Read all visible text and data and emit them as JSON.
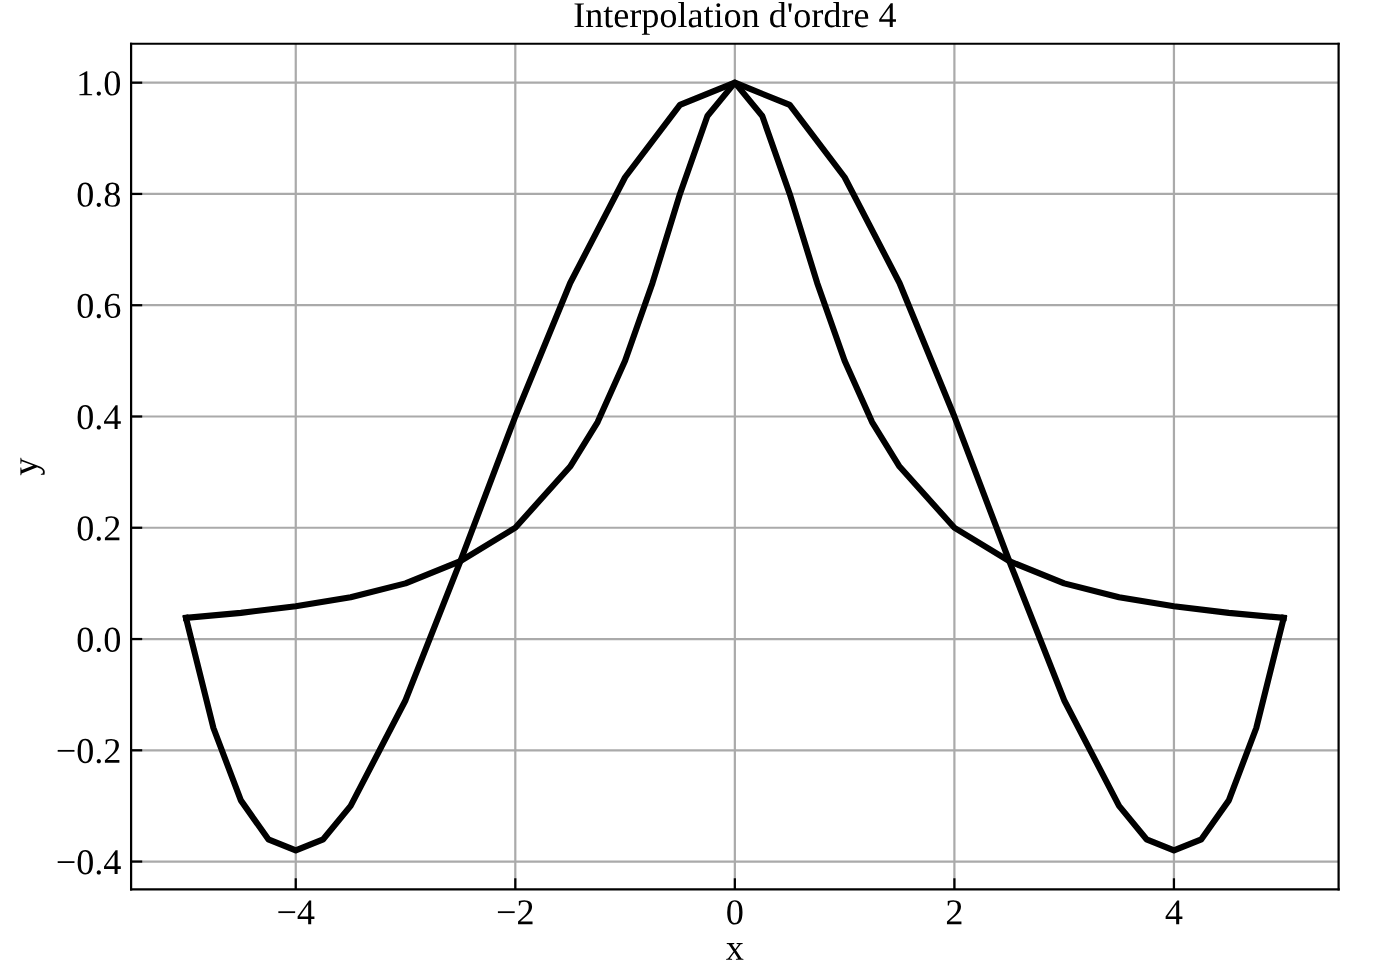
{
  "chart_data": {
    "type": "line",
    "title": "Interpolation d'ordre 4",
    "xlabel": "x",
    "ylabel": "y",
    "series": [
      {
        "color": "#000000",
        "x": [
          -5,
          -4.5,
          -4,
          -3.5,
          -3,
          -2.5,
          -2,
          -1.5,
          -1.25,
          -1,
          -0.75,
          -0.5,
          -0.25,
          0,
          0.25,
          0.5,
          0.75,
          1,
          1.25,
          1.5,
          2,
          2.5,
          3,
          3.5,
          4,
          4.5,
          5
        ],
        "values": [
          0.038,
          0.047,
          0.059,
          0.075,
          0.1,
          0.14,
          0.2,
          0.31,
          0.39,
          0.5,
          0.64,
          0.8,
          0.94,
          1.0,
          0.94,
          0.8,
          0.64,
          0.5,
          0.39,
          0.31,
          0.2,
          0.14,
          0.1,
          0.075,
          0.059,
          0.047,
          0.038
        ]
      },
      {
        "color": "#000000",
        "x": [
          -5,
          -4.75,
          -4.5,
          -4.25,
          -4,
          -3.75,
          -3.5,
          -3,
          -2.5,
          -2,
          -1.5,
          -1,
          -0.5,
          0,
          0.5,
          1,
          1.5,
          2,
          2.5,
          3,
          3.5,
          3.75,
          4,
          4.25,
          4.5,
          4.75,
          5
        ],
        "values": [
          0.038,
          -0.16,
          -0.29,
          -0.36,
          -0.38,
          -0.36,
          -0.3,
          -0.11,
          0.14,
          0.4,
          0.64,
          0.83,
          0.96,
          1.0,
          0.96,
          0.83,
          0.64,
          0.4,
          0.14,
          -0.11,
          -0.3,
          -0.36,
          -0.38,
          -0.36,
          -0.29,
          -0.16,
          0.038
        ]
      }
    ],
    "xlim": [
      -5.5,
      5.5
    ],
    "ylim": [
      -0.45,
      1.07
    ],
    "xticks": [
      {
        "value": -4,
        "label": "−4"
      },
      {
        "value": -2,
        "label": "−2"
      },
      0,
      2,
      4
    ],
    "yticks": [
      {
        "value": -0.4,
        "label": "−0.4"
      },
      {
        "value": -0.2,
        "label": "−0.2"
      },
      {
        "value": 0.0,
        "label": "0.0"
      },
      0.2,
      0.4,
      0.6,
      0.8,
      {
        "value": 1.0,
        "label": "1.0"
      }
    ],
    "grid": true,
    "line_style": "solid",
    "marker": "none"
  }
}
